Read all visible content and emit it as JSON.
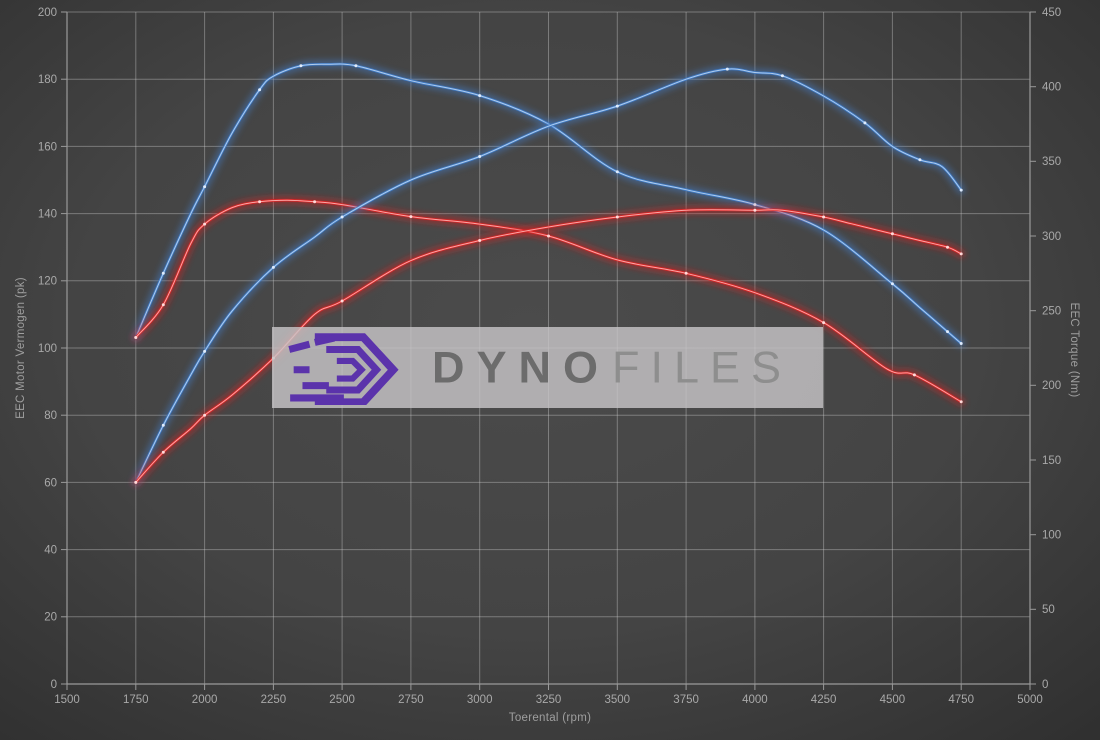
{
  "watermark": {
    "brand_bold": "DYNO",
    "brand_light": "FILES"
  },
  "chart_data": {
    "type": "line",
    "title": "",
    "xlabel": "Toerental (rpm)",
    "ylabel_left": "EEC Motor Vermogen (pk)",
    "ylabel_right": "EEC Torque (Nm)",
    "x_axis": {
      "min": 1500,
      "max": 5000,
      "step": 250
    },
    "y_axis_left": {
      "min": 0,
      "max": 200,
      "step": 20
    },
    "y_axis_right": {
      "min": 0,
      "max": 450,
      "step": 50
    },
    "grid": true,
    "legend": "none",
    "colors": {
      "blue": "#3f7cc9",
      "red": "#dc2424",
      "grid": "#c8c8c8",
      "axis": "#9a9a9a",
      "tick_text": "#a9a9a9"
    },
    "series": [
      {
        "name": "blue-torque",
        "axis": "right",
        "unit": "Nm",
        "color": "#3f7cc9",
        "core": "#bdd6f2",
        "dot": "#e4efff",
        "points": [
          [
            1750,
            232
          ],
          [
            1850,
            275
          ],
          [
            1950,
            315
          ],
          [
            2000,
            333
          ],
          [
            2100,
            369
          ],
          [
            2200,
            398
          ],
          [
            2250,
            407
          ],
          [
            2350,
            414
          ],
          [
            2450,
            415
          ],
          [
            2550,
            414
          ],
          [
            2750,
            404
          ],
          [
            3000,
            394
          ],
          [
            3250,
            375
          ],
          [
            3500,
            343
          ],
          [
            3750,
            331
          ],
          [
            4000,
            321
          ],
          [
            4250,
            304
          ],
          [
            4500,
            268
          ],
          [
            4600,
            252
          ],
          [
            4700,
            236
          ],
          [
            4750,
            228
          ]
        ]
      },
      {
        "name": "red-torque",
        "axis": "right",
        "unit": "Nm",
        "color": "#dc2424",
        "core": "#ffb4b4",
        "dot": "#ffdede",
        "points": [
          [
            1750,
            232
          ],
          [
            1850,
            254
          ],
          [
            1950,
            295
          ],
          [
            2000,
            308
          ],
          [
            2100,
            319
          ],
          [
            2200,
            323
          ],
          [
            2300,
            324
          ],
          [
            2400,
            323
          ],
          [
            2500,
            321
          ],
          [
            2750,
            313
          ],
          [
            3000,
            308
          ],
          [
            3250,
            300
          ],
          [
            3500,
            284
          ],
          [
            3750,
            275
          ],
          [
            4000,
            262
          ],
          [
            4250,
            242
          ],
          [
            4480,
            211
          ],
          [
            4580,
            207
          ],
          [
            4750,
            189
          ]
        ]
      },
      {
        "name": "blue-power",
        "axis": "left",
        "unit": "pk",
        "color": "#3f7cc9",
        "core": "#bdd6f2",
        "dot": "#e4efff",
        "points": [
          [
            1750,
            60
          ],
          [
            1850,
            77
          ],
          [
            1950,
            92
          ],
          [
            2000,
            99
          ],
          [
            2100,
            111
          ],
          [
            2250,
            124
          ],
          [
            2400,
            133
          ],
          [
            2500,
            139
          ],
          [
            2750,
            150
          ],
          [
            3000,
            157
          ],
          [
            3250,
            166
          ],
          [
            3500,
            172
          ],
          [
            3750,
            180
          ],
          [
            3900,
            183
          ],
          [
            4000,
            182
          ],
          [
            4100,
            181
          ],
          [
            4250,
            175
          ],
          [
            4400,
            167
          ],
          [
            4500,
            160
          ],
          [
            4600,
            156
          ],
          [
            4680,
            154
          ],
          [
            4750,
            147
          ]
        ]
      },
      {
        "name": "red-power",
        "axis": "left",
        "unit": "pk",
        "color": "#dc2424",
        "core": "#ffb4b4",
        "dot": "#ffdede",
        "points": [
          [
            1750,
            60
          ],
          [
            1850,
            69
          ],
          [
            1950,
            76
          ],
          [
            2000,
            80
          ],
          [
            2100,
            86
          ],
          [
            2250,
            97
          ],
          [
            2400,
            110
          ],
          [
            2500,
            114
          ],
          [
            2750,
            126
          ],
          [
            3000,
            132
          ],
          [
            3250,
            136
          ],
          [
            3500,
            139
          ],
          [
            3750,
            141
          ],
          [
            4000,
            141
          ],
          [
            4100,
            141
          ],
          [
            4250,
            139
          ],
          [
            4350,
            137
          ],
          [
            4500,
            134
          ],
          [
            4600,
            132
          ],
          [
            4700,
            130
          ],
          [
            4750,
            128
          ]
        ]
      }
    ]
  }
}
